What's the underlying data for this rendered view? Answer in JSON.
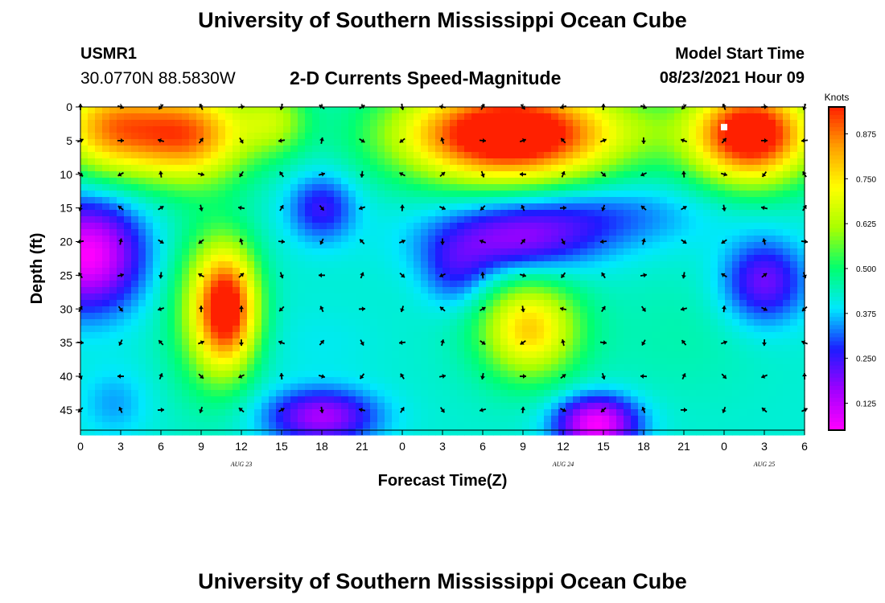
{
  "header": {
    "title_top": "University of Southern Mississippi Ocean Cube",
    "title_bottom": "University of Southern Mississippi Ocean Cube",
    "station_id": "USMR1",
    "coordinates": "30.0770N  88.5830W",
    "subtitle": "2-D Currents Speed-Magnitude",
    "model_label": "Model Start Time",
    "model_time": "08/23/2021 Hour 09"
  },
  "colors": {
    "scale": [
      "#ff00ff",
      "#a000ff",
      "#1c1cff",
      "#00e8ff",
      "#00ff70",
      "#a8ff00",
      "#ffff00",
      "#ffa000",
      "#ff2000"
    ],
    "arrow": "#000000",
    "marker": "#ffffff"
  },
  "chart_data": {
    "type": "heatmap",
    "title": "2-D Currents Speed-Magnitude",
    "xlabel": "Forecast Time(Z)",
    "ylabel": "Depth (ft)",
    "x_ticks": [
      "0",
      "3",
      "6",
      "9",
      "12",
      "15",
      "18",
      "21",
      "0",
      "3",
      "6",
      "9",
      "12",
      "15",
      "18",
      "21",
      "0",
      "3",
      "6"
    ],
    "x_range_hours": [
      0,
      54
    ],
    "date_labels": [
      {
        "text": "AUG 23",
        "hour": 12
      },
      {
        "text": "AUG 24",
        "hour": 36
      },
      {
        "text": "AUG 25",
        "hour": 51
      }
    ],
    "y_ticks": [
      0,
      5,
      10,
      15,
      20,
      25,
      30,
      35,
      40,
      45
    ],
    "y_range_ft": [
      0,
      48
    ],
    "colorbar": {
      "label": "Knots",
      "range": [
        0.05,
        0.95
      ],
      "ticks": [
        "0.125",
        "0.250",
        "0.375",
        "0.500",
        "0.625",
        "0.750",
        "0.875"
      ]
    },
    "marker": {
      "hour": 48,
      "depth": 3
    },
    "speed_features": [
      {
        "hour": 2,
        "depth": 3,
        "knots": 0.8,
        "dh": 4,
        "dd": 7
      },
      {
        "hour": 8,
        "depth": 4,
        "knots": 0.88,
        "dh": 4.5,
        "dd": 7
      },
      {
        "hour": 14.5,
        "depth": 2,
        "knots": 0.6,
        "dh": 2.5,
        "dd": 5
      },
      {
        "hour": 11,
        "depth": 30,
        "knots": 0.9,
        "dh": 2.2,
        "dd": 8.5
      },
      {
        "hour": 9.5,
        "depth": 30,
        "knots": 0.6,
        "dh": 3,
        "dd": 12
      },
      {
        "hour": 32,
        "depth": 4,
        "knots": 1.1,
        "dh": 8,
        "dd": 7
      },
      {
        "hour": 50,
        "depth": 4,
        "knots": 1.05,
        "dh": 4.5,
        "dd": 7
      },
      {
        "hour": 42,
        "depth": 3,
        "knots": 0.45,
        "dh": 3,
        "dd": 4
      },
      {
        "hour": 33.5,
        "depth": 33,
        "knots": 0.75,
        "dh": 3.5,
        "dd": 7
      },
      {
        "hour": 33,
        "depth": 33,
        "knots": 0.45,
        "dh": 6,
        "dd": 11
      },
      {
        "hour": 45,
        "depth": 34,
        "knots": 0.45,
        "dh": 6,
        "dd": 10
      },
      {
        "hour": 18,
        "depth": 35,
        "knots": 0.4,
        "dh": 4,
        "dd": 5
      },
      {
        "hour": 0.5,
        "depth": 22,
        "knots": 0.05,
        "dh": 4,
        "dd": 8
      },
      {
        "hour": 2.5,
        "depth": 44,
        "knots": 0.35,
        "dh": 2.5,
        "dd": 5
      },
      {
        "hour": 18,
        "depth": 15,
        "knots": 0.25,
        "dh": 2.5,
        "dd": 5
      },
      {
        "hour": 32,
        "depth": 20,
        "knots": 0.2,
        "dh": 6,
        "dd": 5
      },
      {
        "hour": 28,
        "depth": 25,
        "knots": 0.3,
        "dh": 2.5,
        "dd": 5
      },
      {
        "hour": 38,
        "depth": 16,
        "knots": 0.3,
        "dh": 8,
        "dd": 5
      },
      {
        "hour": 51,
        "depth": 26,
        "knots": 0.2,
        "dh": 3,
        "dd": 6
      },
      {
        "hour": 18,
        "depth": 46,
        "knots": 0.15,
        "dh": 4,
        "dd": 4
      },
      {
        "hour": 38.5,
        "depth": 47,
        "knots": 0.05,
        "dh": 3,
        "dd": 4
      }
    ],
    "speed_background": 0.42,
    "vectors": [
      {
        "hour": 9,
        "depth": 30,
        "dir": 0
      },
      {
        "hour": 12,
        "depth": 30,
        "dir": 0
      },
      {
        "hour": 3,
        "depth": 5,
        "dir": 90
      },
      {
        "hour": 33,
        "depth": 5,
        "dir": 70
      },
      {
        "hour": 51,
        "depth": 5,
        "dir": 90
      },
      {
        "hour": 18,
        "depth": 25,
        "dir": 270
      },
      {
        "hour": 33,
        "depth": 40,
        "dir": 90
      }
    ],
    "vector_grid": {
      "hour_step": 3,
      "depth_step": 5,
      "depth_offset": 0
    }
  }
}
